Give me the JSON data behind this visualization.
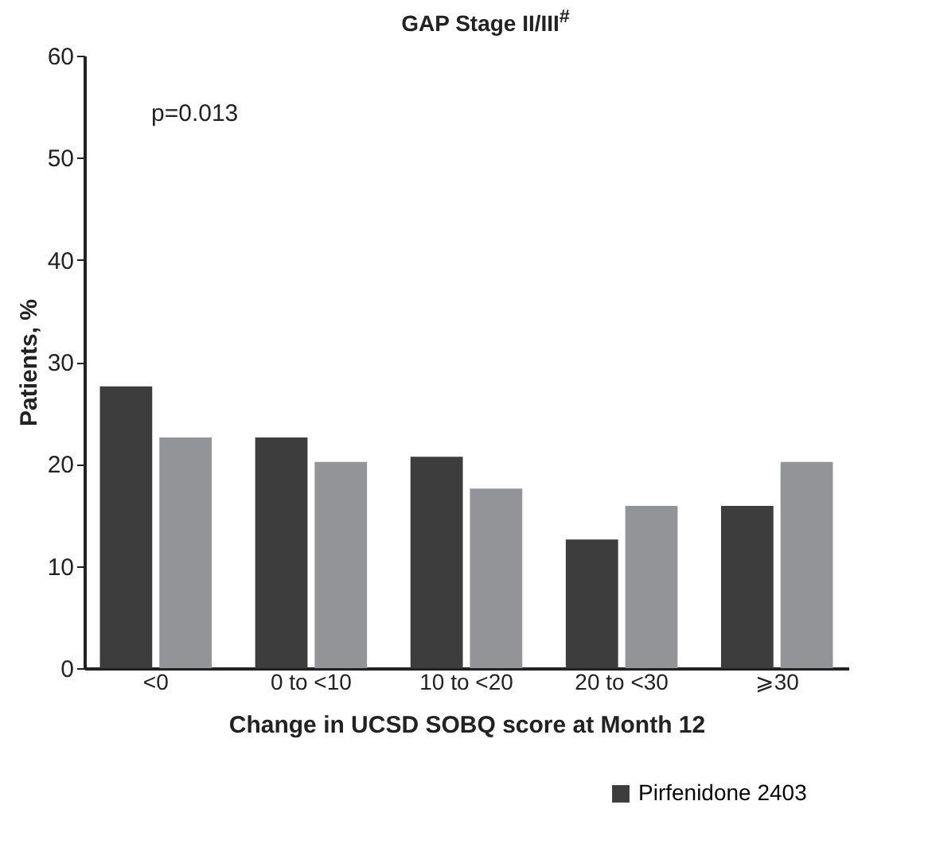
{
  "chart_data": {
    "type": "bar",
    "title": "GAP Stage II/III$^{#}$",
    "xlabel": "Change in UCSD SOBQ score at Month 12",
    "ylabel": "Patients, %",
    "categories": [
      "<0",
      "0 to <10",
      "10 to <20",
      "20 to <30",
      "⩾30"
    ],
    "series": [
      {
        "name": "Pirfenidone 2403",
        "color": "#3d3d3d",
        "values": [
          27.6,
          22.6,
          20.7,
          12.6,
          15.9
        ]
      },
      {
        "color": "#939498",
        "values": [
          22.6,
          20.2,
          17.6,
          15.9,
          20.2
        ]
      }
    ],
    "ylim": [
      0,
      60
    ],
    "yticks": [
      0,
      10,
      20,
      30,
      40,
      50,
      60
    ],
    "grid": false,
    "legend": "bottom right",
    "annotations": [
      "p=0.013"
    ]
  }
}
